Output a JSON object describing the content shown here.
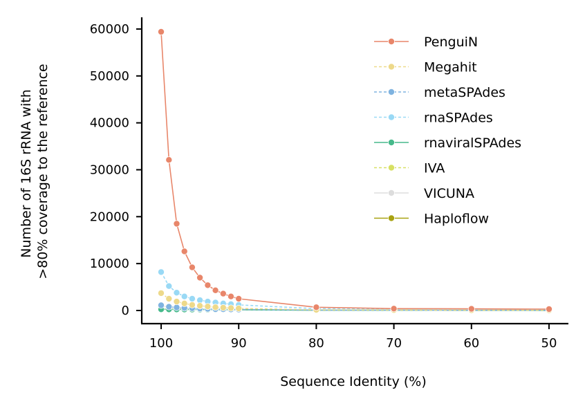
{
  "chart_data": {
    "type": "line",
    "title": "",
    "xlabel": "Sequence Identity (%)",
    "ylabel_lines": [
      "Number of 16S rRNA with",
      ">80% coverage to the reference"
    ],
    "x": [
      100,
      99,
      98,
      97,
      96,
      95,
      94,
      93,
      92,
      91,
      90,
      80,
      70,
      60,
      50
    ],
    "x_ticks": [
      100,
      90,
      80,
      70,
      60,
      50
    ],
    "x_tick_labels": [
      "100",
      "90",
      "80",
      "70",
      "60",
      "50"
    ],
    "xlim": [
      102.5,
      47.5
    ],
    "x_reversed": true,
    "y_ticks": [
      0,
      10000,
      20000,
      30000,
      40000,
      50000,
      60000
    ],
    "y_tick_labels": [
      "0",
      "10000",
      "20000",
      "30000",
      "40000",
      "50000",
      "60000"
    ],
    "ylim": [
      -2800,
      62500
    ],
    "grid": false,
    "legend_position": "top-right",
    "series": [
      {
        "name": "PenguiN",
        "color": "#E8866A",
        "dashed": false,
        "values": [
          59400,
          32100,
          18500,
          12600,
          9200,
          7000,
          5400,
          4300,
          3600,
          3000,
          2500,
          700,
          400,
          350,
          300
        ]
      },
      {
        "name": "Megahit",
        "color": "#EDD98A",
        "dashed": true,
        "values": [
          3700,
          2500,
          1900,
          1500,
          1200,
          1000,
          850,
          700,
          600,
          520,
          450,
          150,
          100,
          80,
          60
        ]
      },
      {
        "name": "metaSPAdes",
        "color": "#7FB3E0",
        "dashed": true,
        "values": [
          1100,
          800,
          650,
          550,
          470,
          400,
          350,
          300,
          260,
          230,
          200,
          80,
          60,
          50,
          40
        ]
      },
      {
        "name": "rnaSPAdes",
        "color": "#99D9F5",
        "dashed": true,
        "values": [
          8200,
          5200,
          3800,
          3000,
          2500,
          2200,
          1900,
          1700,
          1500,
          1350,
          1200,
          400,
          300,
          250,
          200
        ]
      },
      {
        "name": "rnaviralSPAdes",
        "color": "#46B98B",
        "dashed": false,
        "values": [
          250,
          240,
          230,
          220,
          210,
          200,
          190,
          180,
          170,
          160,
          150,
          60,
          40,
          30,
          20
        ]
      },
      {
        "name": "IVA",
        "color": "#D7E063",
        "dashed": true,
        "values": [
          400,
          350,
          300,
          280,
          260,
          240,
          220,
          200,
          190,
          180,
          170,
          60,
          40,
          30,
          20
        ]
      },
      {
        "name": "VICUNA",
        "color": "#DDDDDD",
        "dashed": false,
        "values": [
          1000,
          700,
          550,
          450,
          400,
          350,
          320,
          300,
          280,
          260,
          250,
          100,
          70,
          50,
          40
        ]
      },
      {
        "name": "Haploflow",
        "color": "#A8A211",
        "dashed": false,
        "values": [
          300,
          290,
          280,
          270,
          260,
          250,
          240,
          230,
          220,
          210,
          200,
          80,
          60,
          50,
          40
        ]
      }
    ]
  }
}
